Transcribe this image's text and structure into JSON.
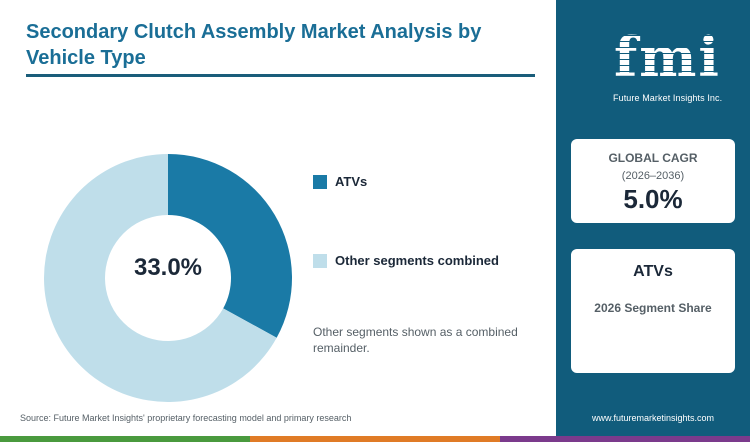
{
  "title": "Secondary Clutch Assembly Market Analysis by Vehicle Type",
  "chart_data": {
    "type": "pie",
    "variant": "donut",
    "categories": [
      "ATVs",
      "Other segments combined"
    ],
    "values": [
      33.0,
      67.0
    ],
    "colors": [
      "#1a7aa6",
      "#bfdeea"
    ],
    "center_label": "33.0%",
    "legend_placement": "right"
  },
  "legend": [
    {
      "label": "ATVs",
      "color": "#1a7aa6"
    },
    {
      "label": "Other segments combined",
      "color": "#bfdeea"
    }
  ],
  "note": "Other segments shown as a combined remainder.",
  "source": "Source: Future Market Insights' proprietary forecasting model and primary research",
  "sidebar": {
    "logo_text": "fmi",
    "logo_caption": "Future Market Insights Inc.",
    "cagr_label": "GLOBAL CAGR",
    "cagr_period": "(2026–2036)",
    "cagr_value": "5.0%",
    "segment_name": "ATVs",
    "segment_sub": "2026 Segment Share",
    "website": "www.futuremarketinsights.com"
  },
  "colors": {
    "accent": "#1a6e96",
    "sidebar_bg": "#115c7c",
    "bottom_bar": [
      "#4a9a3e",
      "#e07b26",
      "#7b3a8c"
    ]
  }
}
